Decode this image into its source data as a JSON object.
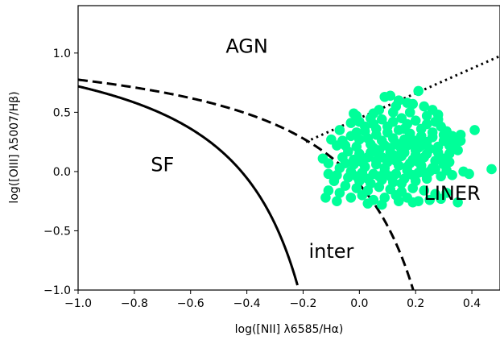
{
  "chart_data": {
    "type": "scatter",
    "title": "",
    "xlabel": "log([NII] λ6585/Hα)",
    "ylabel": "log([OIII] λ5007/Hβ)",
    "xlim": [
      -1.0,
      0.5
    ],
    "ylim": [
      -1.0,
      1.4
    ],
    "grid": false,
    "x_ticks": [
      -1.0,
      -0.8,
      -0.6,
      -0.4,
      -0.2,
      0.0,
      0.2,
      0.4
    ],
    "x_tick_labels": [
      "−1.0",
      "−0.8",
      "−0.6",
      "−0.4",
      "−0.2",
      "0.0",
      "0.2",
      "0.4"
    ],
    "y_ticks": [
      -1.0,
      -0.5,
      0.0,
      0.5,
      1.0
    ],
    "y_tick_labels": [
      "−1.0",
      "−0.5",
      "0.0",
      "0.5",
      "1.0"
    ],
    "region_labels": [
      {
        "text": "AGN",
        "x": -0.4,
        "y": 1.05
      },
      {
        "text": "SF",
        "x": -0.7,
        "y": 0.05
      },
      {
        "text": "inter",
        "x": -0.1,
        "y": -0.68
      },
      {
        "text": "LINER",
        "x": 0.33,
        "y": -0.19
      }
    ],
    "lines": [
      {
        "kind": "solid",
        "description": "Kauffmann",
        "function": "0.61/(x-0.05)+1.3",
        "x_range": [
          -1.0,
          -0.22
        ]
      },
      {
        "kind": "dashed",
        "description": "Kewley",
        "function": "0.61/(x-0.47)+1.19",
        "x_range": [
          -1.0,
          0.21
        ]
      },
      {
        "kind": "dotted",
        "description": "Seyfert-LINER",
        "function": "1.05*x+0.45",
        "x_range": [
          -0.19,
          0.5
        ]
      }
    ],
    "series": [
      {
        "color": "#00ff99",
        "points": [
          [
            0.14,
            0.6
          ],
          [
            0.11,
            0.64
          ],
          [
            0.09,
            0.63
          ],
          [
            0.21,
            0.68
          ],
          [
            0.19,
            0.57
          ],
          [
            0.23,
            0.55
          ],
          [
            0.26,
            0.52
          ],
          [
            0.28,
            0.48
          ],
          [
            0.15,
            0.45
          ],
          [
            0.12,
            0.42
          ],
          [
            0.08,
            0.44
          ],
          [
            0.05,
            0.4
          ],
          [
            0.02,
            0.38
          ],
          [
            -0.02,
            0.49
          ],
          [
            -0.01,
            0.47
          ],
          [
            -0.03,
            0.41
          ],
          [
            0.17,
            0.4
          ],
          [
            0.2,
            0.43
          ],
          [
            0.24,
            0.4
          ],
          [
            0.29,
            0.38
          ],
          [
            0.31,
            0.34
          ],
          [
            0.33,
            0.3
          ],
          [
            0.3,
            0.26
          ],
          [
            0.36,
            0.31
          ],
          [
            0.41,
            0.35
          ],
          [
            0.26,
            0.33
          ],
          [
            0.22,
            0.3
          ],
          [
            0.18,
            0.32
          ],
          [
            0.14,
            0.35
          ],
          [
            0.1,
            0.33
          ],
          [
            0.06,
            0.31
          ],
          [
            0.03,
            0.28
          ],
          [
            0.0,
            0.27
          ],
          [
            -0.03,
            0.3
          ],
          [
            0.05,
            0.2
          ],
          [
            0.09,
            0.22
          ],
          [
            0.13,
            0.24
          ],
          [
            0.17,
            0.22
          ],
          [
            0.21,
            0.2
          ],
          [
            0.25,
            0.19
          ],
          [
            0.28,
            0.16
          ],
          [
            0.32,
            0.15
          ],
          [
            0.12,
            0.28
          ],
          [
            0.16,
            0.27
          ],
          [
            0.2,
            0.26
          ],
          [
            0.24,
            0.25
          ],
          [
            0.08,
            0.26
          ],
          [
            0.04,
            0.23
          ],
          [
            -0.01,
            0.21
          ],
          [
            -0.05,
            0.22
          ],
          [
            -0.04,
            0.17
          ],
          [
            0.0,
            0.15
          ],
          [
            0.03,
            0.12
          ],
          [
            0.07,
            0.14
          ],
          [
            0.11,
            0.16
          ],
          [
            0.15,
            0.13
          ],
          [
            0.19,
            0.1
          ],
          [
            0.23,
            0.12
          ],
          [
            0.27,
            0.09
          ],
          [
            0.3,
            0.06
          ],
          [
            0.26,
            0.03
          ],
          [
            0.22,
            0.05
          ],
          [
            0.18,
            0.07
          ],
          [
            0.14,
            0.05
          ],
          [
            0.1,
            0.08
          ],
          [
            0.06,
            0.06
          ],
          [
            0.02,
            0.04
          ],
          [
            -0.02,
            0.06
          ],
          [
            -0.06,
            0.12
          ],
          [
            -0.08,
            0.22
          ],
          [
            -0.1,
            0.27
          ],
          [
            -0.13,
            0.11
          ],
          [
            -0.11,
            0.07
          ],
          [
            -0.07,
            0.03
          ],
          [
            -0.03,
            0.0
          ],
          [
            0.01,
            -0.01
          ],
          [
            0.05,
            -0.02
          ],
          [
            0.09,
            0.0
          ],
          [
            0.13,
            -0.02
          ],
          [
            0.17,
            0.01
          ],
          [
            0.21,
            -0.01
          ],
          [
            0.25,
            0.0
          ],
          [
            0.29,
            -0.04
          ],
          [
            0.33,
            -0.03
          ],
          [
            0.37,
            0.0
          ],
          [
            0.39,
            -0.02
          ],
          [
            0.47,
            0.02
          ],
          [
            0.24,
            -0.06
          ],
          [
            0.2,
            -0.08
          ],
          [
            0.16,
            -0.06
          ],
          [
            0.12,
            -0.09
          ],
          [
            0.08,
            -0.07
          ],
          [
            0.04,
            -0.1
          ],
          [
            0.0,
            -0.08
          ],
          [
            -0.04,
            -0.05
          ],
          [
            -0.08,
            -0.03
          ],
          [
            -0.09,
            -0.08
          ],
          [
            -0.05,
            -0.12
          ],
          [
            -0.01,
            -0.14
          ],
          [
            0.03,
            -0.16
          ],
          [
            0.07,
            -0.13
          ],
          [
            0.11,
            -0.15
          ],
          [
            0.15,
            -0.17
          ],
          [
            0.19,
            -0.14
          ],
          [
            0.23,
            -0.16
          ],
          [
            0.27,
            -0.19
          ],
          [
            0.31,
            -0.18
          ],
          [
            0.29,
            -0.23
          ],
          [
            0.25,
            -0.24
          ],
          [
            0.21,
            -0.25
          ],
          [
            0.17,
            -0.22
          ],
          [
            0.13,
            -0.2
          ],
          [
            0.09,
            -0.22
          ],
          [
            0.05,
            -0.24
          ],
          [
            0.01,
            -0.2
          ],
          [
            -0.03,
            -0.22
          ],
          [
            -0.07,
            -0.18
          ],
          [
            -0.11,
            -0.16
          ],
          [
            -0.12,
            -0.22
          ],
          [
            -0.08,
            -0.25
          ],
          [
            0.03,
            -0.27
          ],
          [
            0.08,
            -0.28
          ],
          [
            0.14,
            -0.25
          ],
          [
            0.19,
            -0.26
          ],
          [
            0.35,
            -0.26
          ],
          [
            -0.11,
            -0.02
          ],
          [
            0.12,
            0.5
          ],
          [
            0.18,
            0.5
          ],
          [
            0.22,
            0.36
          ],
          [
            0.27,
            0.42
          ],
          [
            0.02,
            0.34
          ],
          [
            -0.01,
            0.33
          ],
          [
            0.1,
            0.38
          ],
          [
            0.16,
            0.36
          ],
          [
            0.2,
            0.14
          ],
          [
            0.24,
            0.15
          ],
          [
            0.07,
            0.18
          ],
          [
            0.11,
            0.2
          ],
          [
            0.15,
            0.18
          ],
          [
            -0.02,
            0.1
          ],
          [
            0.06,
            0.09
          ],
          [
            0.1,
            0.11
          ],
          [
            0.28,
            0.21
          ],
          [
            0.32,
            0.22
          ],
          [
            0.35,
            0.18
          ],
          [
            0.13,
            0.09
          ],
          [
            0.17,
            0.04
          ],
          [
            0.21,
            0.08
          ],
          [
            0.01,
            0.08
          ],
          [
            -0.05,
            0.07
          ],
          [
            0.26,
            0.29
          ],
          [
            0.3,
            0.31
          ],
          [
            0.09,
            0.03
          ],
          [
            0.07,
            -0.04
          ],
          [
            0.11,
            -0.04
          ],
          [
            0.15,
            -0.1
          ],
          [
            0.19,
            -0.03
          ],
          [
            0.23,
            -0.01
          ],
          [
            0.27,
            0.02
          ],
          [
            0.31,
            0.01
          ],
          [
            0.03,
            -0.06
          ],
          [
            -0.01,
            -0.04
          ],
          [
            0.05,
            0.49
          ],
          [
            0.07,
            0.52
          ],
          [
            0.13,
            0.55
          ],
          [
            0.17,
            0.58
          ],
          [
            0.14,
            0.22
          ],
          [
            0.18,
            0.24
          ],
          [
            0.22,
            0.22
          ],
          [
            0.04,
            0.16
          ],
          [
            0.08,
            0.12
          ],
          [
            0.12,
            0.14
          ],
          [
            0.16,
            0.16
          ],
          [
            0.2,
            0.18
          ],
          [
            0.06,
            0.36
          ],
          [
            0.24,
            0.47
          ],
          [
            0.28,
            0.44
          ],
          [
            0.33,
            0.26
          ],
          [
            0.34,
            0.21
          ],
          [
            0.36,
            0.26
          ],
          [
            0.3,
            0.11
          ],
          [
            0.32,
            0.08
          ],
          [
            -0.06,
            0.26
          ],
          [
            -0.07,
            0.35
          ],
          [
            0.0,
            0.42
          ],
          [
            0.04,
            0.45
          ]
        ]
      }
    ]
  }
}
